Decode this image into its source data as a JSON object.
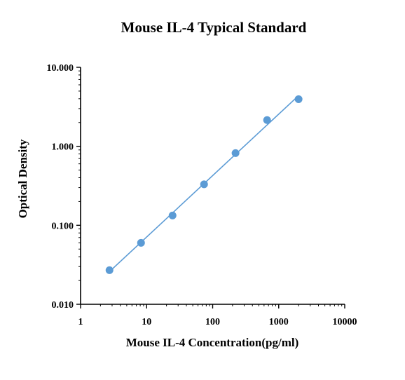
{
  "chart_data": {
    "type": "scatter",
    "title": "Mouse IL-4 Typical Standard",
    "xlabel": "Mouse IL-4 Concentration(pg/ml)",
    "ylabel": "Optical Density",
    "xscale": "log",
    "yscale": "log",
    "xlim": [
      1,
      10000
    ],
    "ylim": [
      0.01,
      10
    ],
    "xticks": [
      {
        "value": 1,
        "label": "1"
      },
      {
        "value": 10,
        "label": "10"
      },
      {
        "value": 100,
        "label": "100"
      },
      {
        "value": 1000,
        "label": "1000"
      },
      {
        "value": 10000,
        "label": "10000"
      }
    ],
    "yticks": [
      {
        "value": 0.01,
        "label": "0.010"
      },
      {
        "value": 0.1,
        "label": "0.100"
      },
      {
        "value": 1,
        "label": "1.000"
      },
      {
        "value": 10,
        "label": "10.000"
      }
    ],
    "grid": false,
    "legend": "none",
    "series": [
      {
        "x": [
          2.74,
          8.23,
          24.7,
          74.1,
          222,
          667,
          2000
        ],
        "y": [
          0.027,
          0.06,
          0.133,
          0.33,
          0.82,
          2.15,
          3.95
        ],
        "color": "#5b9bd5",
        "fit_line": true
      }
    ]
  }
}
